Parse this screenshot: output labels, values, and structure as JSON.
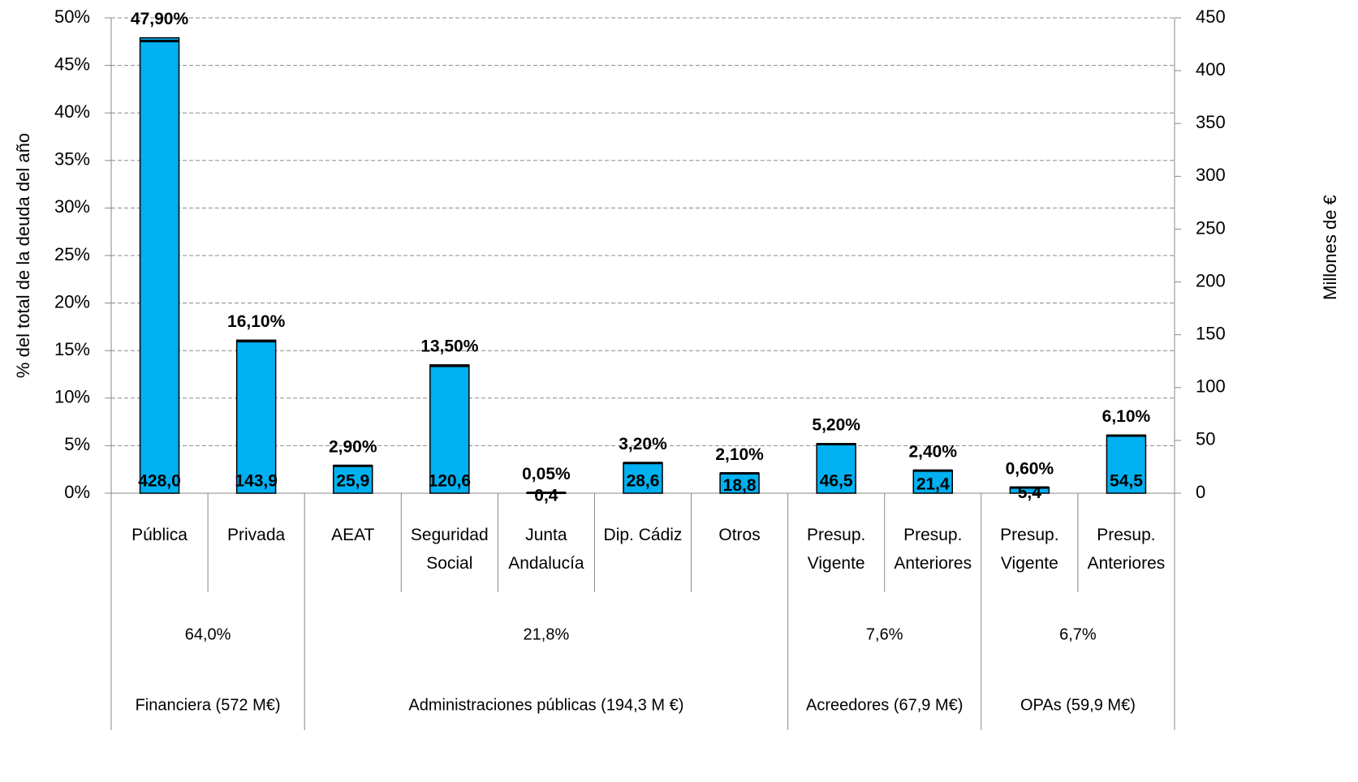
{
  "chart_data": {
    "type": "bar",
    "ylabel": "% del total de la deuda del año",
    "y2label": "Millones de €",
    "groups": [
      {
        "name": "Financiera (572 M€)",
        "share": "64,0%",
        "categories": [
          "Pública",
          "Privada"
        ]
      },
      {
        "name": "Administraciones públicas (194,3 M €)",
        "share": "21,8%",
        "categories": [
          "AEAT",
          "Seguridad Social",
          "Junta Andalucía",
          "Dip. Cádiz",
          "Otros"
        ]
      },
      {
        "name": "Acreedores (67,9 M€)",
        "share": "7,6%",
        "categories": [
          "Presup. Vigente",
          "Presup. Anteriores"
        ]
      },
      {
        "name": "OPAs (59,9 M€)",
        "share": "6,7%",
        "categories": [
          "Presup. Vigente",
          "Presup. Anteriores"
        ]
      }
    ],
    "series": [
      {
        "color": "#00b0f0",
        "values": [
          47.9,
          16.1,
          2.9,
          13.5,
          0.05,
          3.2,
          2.1,
          5.2,
          2.4,
          0.6,
          6.1
        ],
        "value_labels": [
          "47,90%",
          "16,10%",
          "2,90%",
          "13,50%",
          "0,05%",
          "3,20%",
          "2,10%",
          "5,20%",
          "2,40%",
          "0,60%",
          "6,10%"
        ]
      },
      {
        "color": "#000000",
        "axis": "y2",
        "values": [
          428.0,
          143.9,
          25.9,
          120.6,
          0.4,
          28.6,
          18.8,
          46.5,
          21.4,
          5.4,
          54.5
        ],
        "value_labels": [
          "428,0",
          "143,9",
          "25,9",
          "120,6",
          "0,4",
          "28,6",
          "18,8",
          "46,5",
          "21,4",
          "5,4",
          "54,5"
        ]
      }
    ],
    "ylim": [
      0,
      50
    ],
    "yticks": [
      {
        "value": 0,
        "label": "0%"
      },
      {
        "value": 5,
        "label": "5%"
      },
      {
        "value": 10,
        "label": "10%"
      },
      {
        "value": 15,
        "label": "15%"
      },
      {
        "value": 20,
        "label": "20%"
      },
      {
        "value": 25,
        "label": "25%"
      },
      {
        "value": 30,
        "label": "30%"
      },
      {
        "value": 35,
        "label": "35%"
      },
      {
        "value": 40,
        "label": "40%"
      },
      {
        "value": 45,
        "label": "45%"
      },
      {
        "value": 50,
        "label": "50%"
      }
    ],
    "y2lim": [
      0,
      450
    ],
    "y2ticks": [
      0,
      50,
      100,
      150,
      200,
      250,
      300,
      350,
      400,
      450
    ],
    "grid": true
  }
}
